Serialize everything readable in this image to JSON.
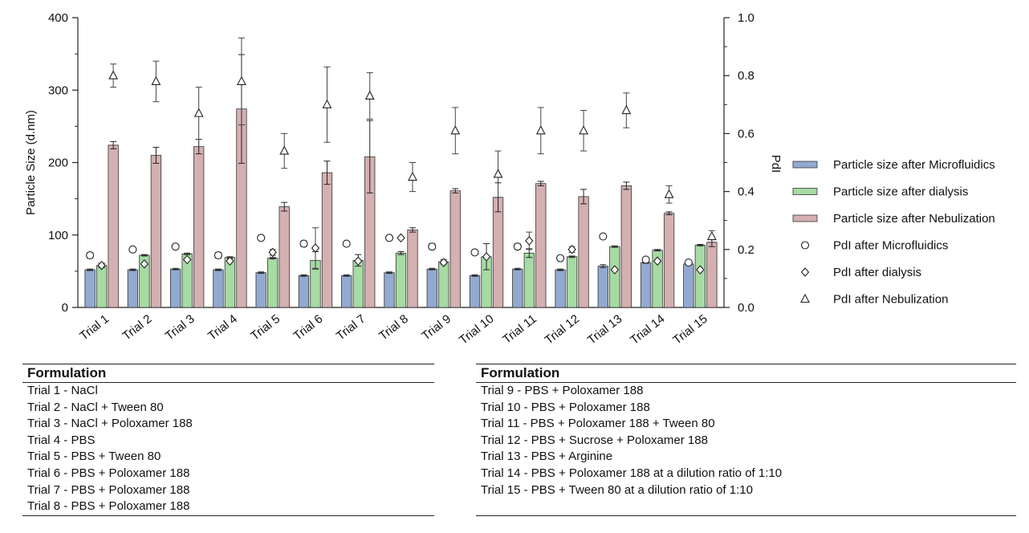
{
  "chart_data": {
    "type": "bar",
    "categories": [
      "Trial 1",
      "Trial 2",
      "Trial 3",
      "Trial 4",
      "Trial 5",
      "Trial 6",
      "Trial 7",
      "Trial 8",
      "Trial 9",
      "Trial 10",
      "Trial 11",
      "Trial 12",
      "Trial 13",
      "Trial 14",
      "Trial 15"
    ],
    "ylabel": "Particle Size (d.nm)",
    "y2label": "PdI",
    "ylim": [
      0,
      400
    ],
    "y2lim": [
      0,
      1.0
    ],
    "yticks": [
      "0",
      "100",
      "200",
      "300",
      "400"
    ],
    "y2ticks": [
      "0.0",
      "0.2",
      "0.4",
      "0.6",
      "0.8",
      "1.0"
    ],
    "legend_position": "right",
    "series": [
      {
        "name": "Particle size after Microfluidics",
        "kind": "bar",
        "axis": "left",
        "color": "#92aad0",
        "values": [
          52,
          52,
          53,
          52,
          48,
          44,
          44,
          48,
          53,
          44,
          53,
          52,
          57,
          62,
          60
        ],
        "errors": [
          1,
          1,
          1,
          1,
          1,
          1,
          1,
          1,
          1,
          1,
          1,
          1,
          2,
          1,
          1
        ]
      },
      {
        "name": "Particle size after dialysis",
        "kind": "bar",
        "axis": "left",
        "color": "#a6dba4",
        "values": [
          58,
          72,
          74,
          69,
          68,
          65,
          65,
          75,
          63,
          70,
          75,
          70,
          84,
          79,
          86
        ],
        "errors": [
          3,
          1,
          1,
          1,
          1,
          12,
          8,
          2,
          3,
          18,
          6,
          1,
          1,
          1,
          1
        ]
      },
      {
        "name": "Particle size after Nebulization",
        "kind": "bar",
        "axis": "left",
        "color": "#d4b0b0",
        "values": [
          224,
          210,
          222,
          274,
          139,
          186,
          208,
          107,
          161,
          152,
          171,
          153,
          168,
          130,
          90
        ],
        "errors": [
          5,
          11,
          10,
          75,
          6,
          16,
          50,
          3,
          3,
          20,
          3,
          10,
          5,
          2,
          6
        ]
      },
      {
        "name": "PdI after Microfluidics",
        "kind": "marker",
        "marker": "circle",
        "axis": "right",
        "values": [
          0.18,
          0.2,
          0.21,
          0.18,
          0.24,
          0.22,
          0.22,
          0.24,
          0.21,
          0.19,
          0.21,
          0.17,
          0.245,
          0.165,
          0.155
        ],
        "errors": [
          0.01,
          0,
          0,
          0.01,
          0,
          0.01,
          0,
          0,
          0.01,
          0,
          0.01,
          0,
          0,
          0,
          0
        ]
      },
      {
        "name": "PdI after dialysis",
        "kind": "marker",
        "marker": "diamond",
        "axis": "right",
        "values": [
          0.145,
          0.15,
          0.165,
          0.16,
          0.19,
          0.205,
          0.16,
          0.24,
          0.155,
          0.175,
          0.23,
          0.2,
          0.13,
          0.16,
          0.13
        ],
        "errors": [
          0.005,
          0,
          0,
          0,
          0.01,
          0.07,
          0,
          0,
          0.005,
          0,
          0.03,
          0.01,
          0,
          0,
          0
        ]
      },
      {
        "name": "PdI after Nebulization",
        "kind": "marker",
        "marker": "triangle",
        "axis": "right",
        "values": [
          0.8,
          0.78,
          0.67,
          0.78,
          0.54,
          0.7,
          0.73,
          0.45,
          0.61,
          0.46,
          0.61,
          0.61,
          0.68,
          0.39,
          0.245
        ],
        "errors": [
          0.04,
          0.07,
          0.09,
          0.15,
          0.06,
          0.13,
          0.08,
          0.05,
          0.08,
          0.08,
          0.08,
          0.07,
          0.06,
          0.03,
          0.02
        ]
      }
    ]
  },
  "tables": [
    {
      "header": "Formulation",
      "rows": [
        "Trial 1 - NaCl",
        "Trial 2 - NaCl + Tween 80",
        "Trial 3 - NaCl + Poloxamer 188",
        "Trial 4 - PBS",
        "Trial 5 - PBS + Tween 80",
        "Trial 6 - PBS + Poloxamer 188",
        "Trial 7 - PBS + Poloxamer 188",
        "Trial 8 - PBS + Poloxamer 188"
      ]
    },
    {
      "header": "Formulation",
      "rows": [
        "Trial 9 - PBS + Poloxamer 188",
        "Trial 10 - PBS + Poloxamer 188",
        "Trial 11 - PBS + Poloxamer 188 + Tween 80",
        "Trial 12 - PBS + Sucrose + Poloxamer 188",
        "Trial 13 - PBS + Arginine",
        "Trial 14 - PBS + Poloxamer 188 at a dilution ratio of 1:10",
        "Trial 15 - PBS + Tween 80 at a dilution ratio of 1:10"
      ]
    }
  ]
}
